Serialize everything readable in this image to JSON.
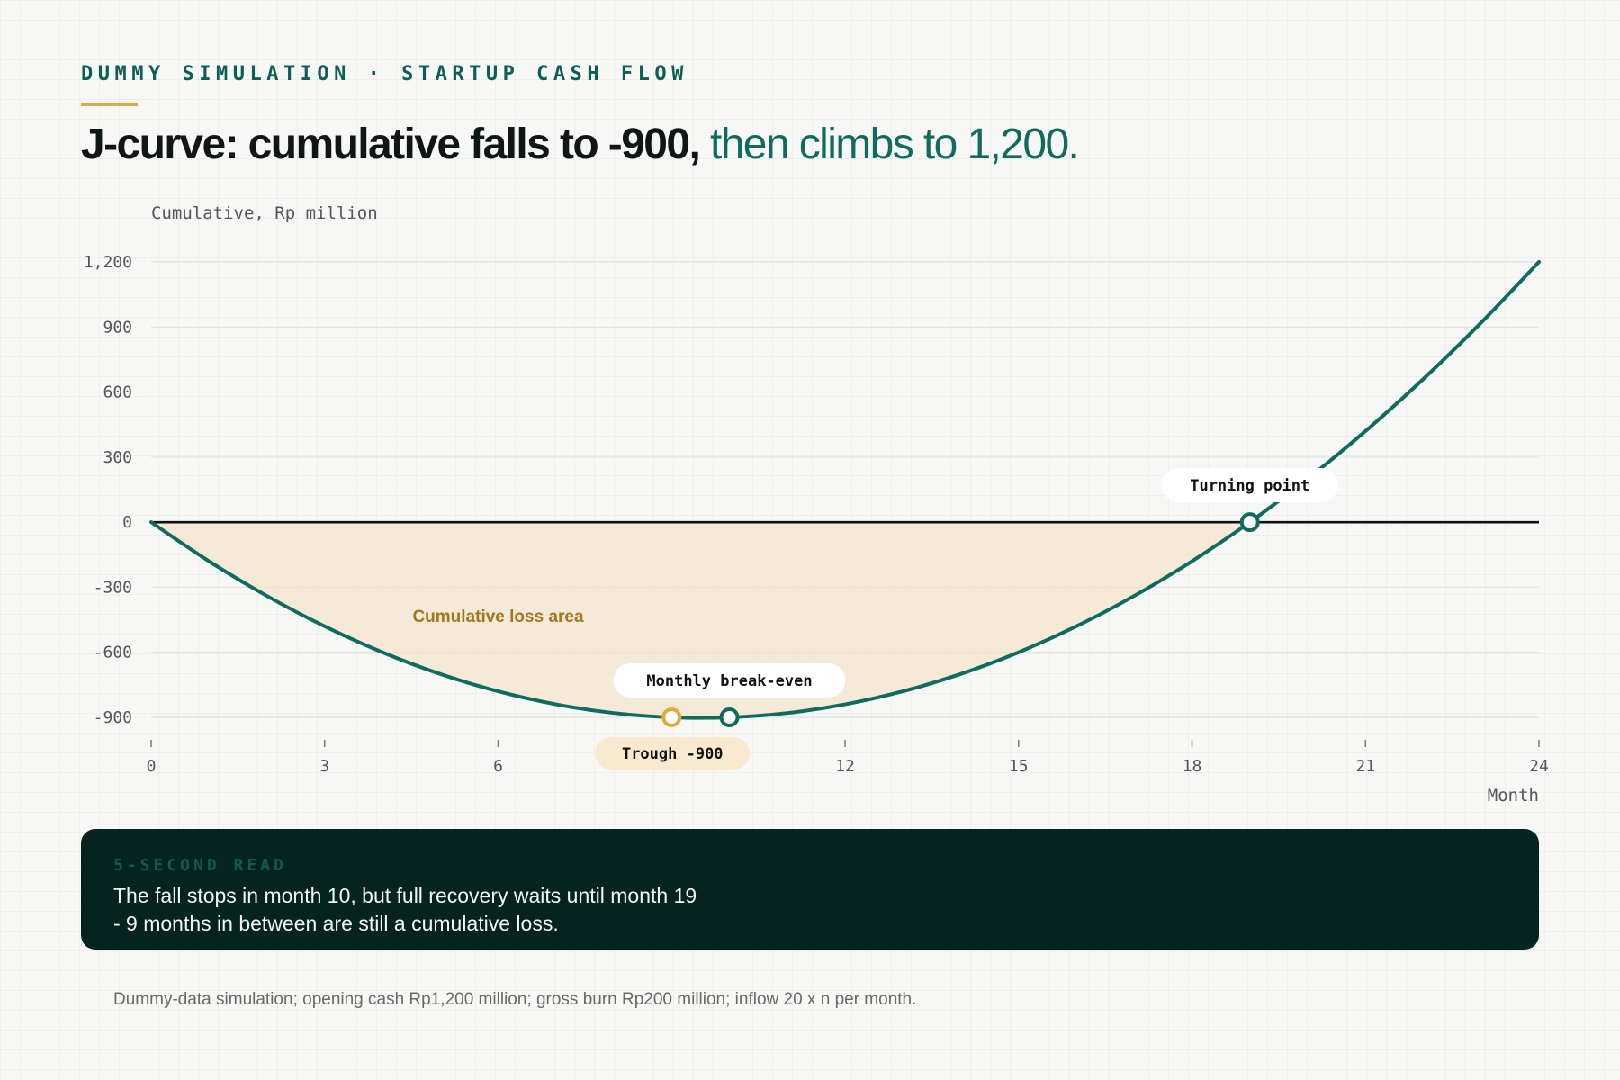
{
  "header": {
    "eyebrow": "DUMMY SIMULATION · STARTUP CASH FLOW",
    "headline_strong": "J-curve: cumulative falls to -900,",
    "headline_accent": "then climbs to 1,200."
  },
  "chart_data": {
    "type": "line",
    "title": "",
    "ylabel": "Cumulative, Rp million",
    "xlabel": "Month",
    "xlim": [
      0,
      24
    ],
    "ylim": [
      -900,
      1200
    ],
    "x_ticks": [
      0,
      3,
      6,
      12,
      15,
      18,
      21,
      24
    ],
    "y_ticks": [
      1200,
      900,
      600,
      300,
      0,
      -300,
      -600,
      -900
    ],
    "y_tick_labels": [
      "1,200",
      "900",
      "600",
      "300",
      "0",
      "-300",
      "-600",
      "-900"
    ],
    "series": [
      {
        "name": "",
        "x": [
          0,
          1,
          2,
          3,
          4,
          5,
          6,
          7,
          8,
          9,
          10,
          11,
          12,
          13,
          14,
          15,
          16,
          17,
          18,
          19,
          20,
          21,
          22,
          23,
          24
        ],
        "y": [
          0,
          -180,
          -340,
          -480,
          -600,
          -700,
          -780,
          -840,
          -880,
          -900,
          -900,
          -880,
          -840,
          -780,
          -700,
          -600,
          -480,
          -340,
          -180,
          0,
          200,
          420,
          660,
          920,
          1200
        ]
      }
    ],
    "grid": true,
    "shaded_region": {
      "label": "Cumulative loss area",
      "from_x": 0,
      "to_x": 19,
      "color": "#f3e2c4"
    },
    "annotations": [
      {
        "label": "Trough -900",
        "x": 9,
        "y": -900,
        "marker_color": "#e2a83c"
      },
      {
        "label": "Monthly break-even",
        "x": 10,
        "y": -900,
        "marker_color": "#0e6b5e"
      },
      {
        "label": "Turning point",
        "x": 19,
        "y": 0,
        "marker_color": "#0e6b5e"
      }
    ],
    "colors": {
      "line": "#0e6b5e",
      "zero_line": "#111111",
      "trough": "#e2a83c",
      "loss_label": "#a2751f"
    }
  },
  "callout": {
    "kicker": "5-SECOND READ",
    "text": "The fall stops in month 10, but full recovery waits until month 19 - 9 months in between are still a cumulative loss."
  },
  "footnote": "Dummy-data simulation; opening cash Rp1,200 million; gross burn Rp200 million; inflow 20 x n per month."
}
